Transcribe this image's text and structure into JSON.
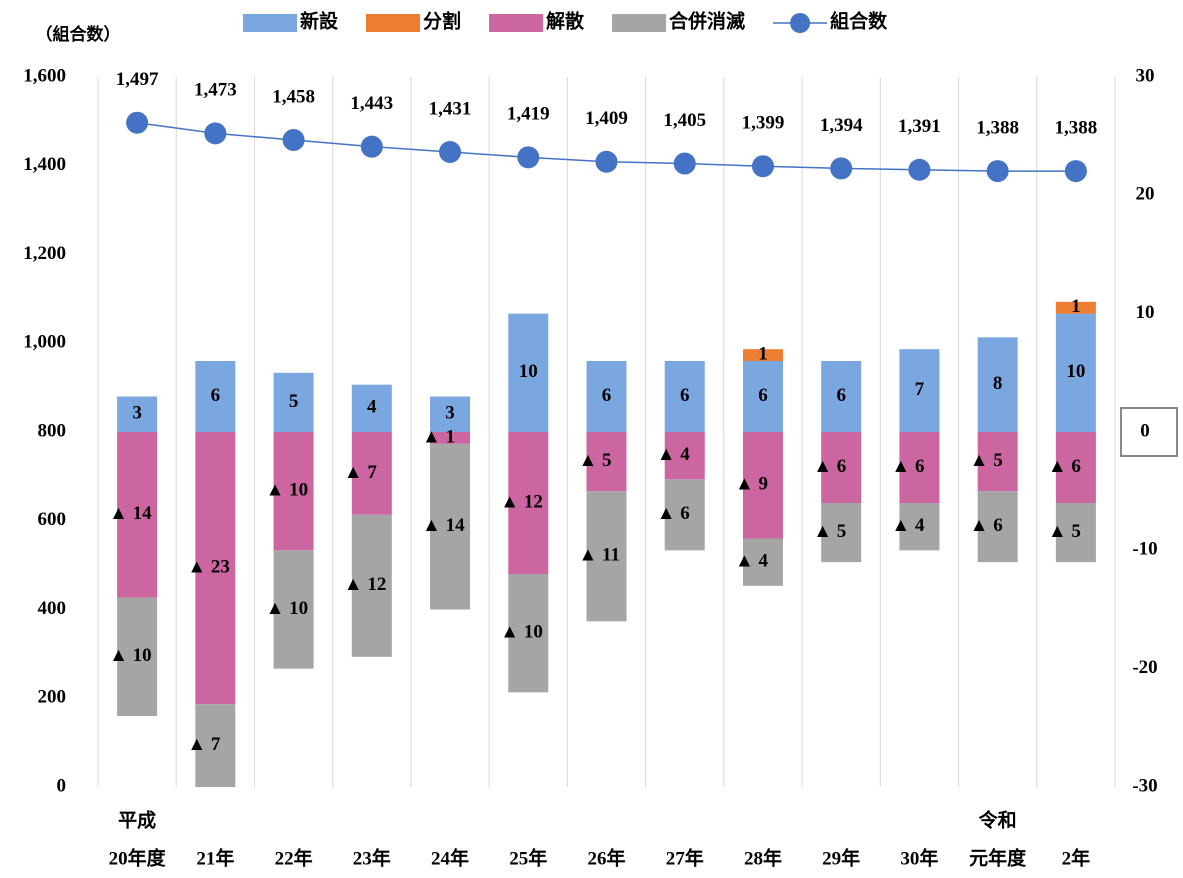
{
  "chart_data": {
    "type": "bar-line",
    "y_axis_label": "（組合数）",
    "categories": [
      [
        "平成",
        "20年度"
      ],
      [
        "21年"
      ],
      [
        "22年"
      ],
      [
        "23年"
      ],
      [
        "24年"
      ],
      [
        "25年"
      ],
      [
        "26年"
      ],
      [
        "27年"
      ],
      [
        "28年"
      ],
      [
        "29年"
      ],
      [
        "30年"
      ],
      [
        "令和",
        "元年度"
      ],
      [
        "2年"
      ]
    ],
    "ylim": [
      0,
      1600
    ],
    "yticks": [
      0,
      200,
      400,
      600,
      800,
      {
        "value": 1000,
        "label": "1,000"
      },
      {
        "value": 1200,
        "label": "1,200"
      },
      {
        "value": 1400,
        "label": "1,400"
      },
      {
        "value": 1600,
        "label": "1,600"
      }
    ],
    "y2lim": [
      -30,
      30
    ],
    "y2ticks": [
      -30,
      -20,
      -10,
      0,
      10,
      20,
      30
    ],
    "series": [
      {
        "name": "新設",
        "type": "bar",
        "axis": "y2",
        "color": "#7ba7e1",
        "values": [
          3,
          6,
          5,
          4,
          3,
          10,
          6,
          6,
          6,
          6,
          7,
          8,
          10
        ]
      },
      {
        "name": "分割",
        "type": "bar",
        "axis": "y2",
        "color": "#ed7d31",
        "values": [
          null,
          null,
          null,
          null,
          null,
          null,
          null,
          null,
          1,
          null,
          null,
          null,
          1
        ]
      },
      {
        "name": "解散",
        "type": "bar",
        "axis": "y2",
        "color": "#cc66a0",
        "values": [
          -14,
          -23,
          -10,
          -7,
          -1,
          -12,
          -5,
          -4,
          -9,
          -6,
          -6,
          -5,
          -6
        ],
        "value_labels": [
          "▲ 14",
          "▲ 23",
          "▲ 10",
          "▲ 7",
          "▲ 1",
          "▲ 12",
          "▲ 5",
          "▲ 4",
          "▲ 9",
          "▲ 6",
          "▲ 6",
          "▲ 5",
          "▲ 6"
        ]
      },
      {
        "name": "合併消滅",
        "type": "bar",
        "axis": "y2",
        "color": "#a5a5a5",
        "values": [
          -10,
          -7,
          -10,
          -12,
          -14,
          -10,
          -11,
          -6,
          -4,
          -5,
          -4,
          -6,
          -5
        ],
        "value_labels": [
          "▲ 10",
          "▲ 7",
          "▲ 10",
          "▲ 12",
          "▲ 14",
          "▲ 10",
          "▲ 11",
          "▲ 6",
          "▲ 4",
          "▲ 5",
          "▲ 4",
          "▲ 6",
          "▲ 5"
        ]
      },
      {
        "name": "組合数",
        "type": "line",
        "color": "#4472c4",
        "values": [
          1497,
          1473,
          1458,
          1443,
          1431,
          1419,
          1409,
          1405,
          1399,
          1394,
          1391,
          1388,
          1388
        ],
        "value_labels": [
          "1,497",
          "1,473",
          "1,458",
          "1,443",
          "1,431",
          "1,419",
          "1,409",
          "1,405",
          "1,399",
          "1,394",
          "1,391",
          "1,388",
          "1,388"
        ]
      }
    ]
  }
}
